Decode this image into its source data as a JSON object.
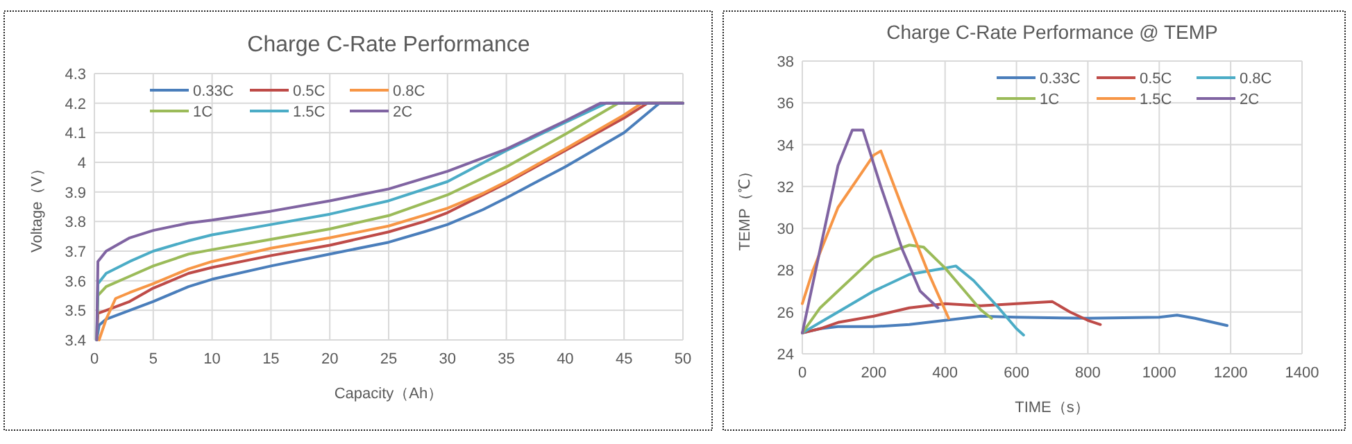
{
  "chart_data": [
    {
      "type": "line",
      "title": "Charge C-Rate Performance",
      "xlabel": "Capacity（Ah）",
      "ylabel": "Voltage（V）",
      "xlim": [
        0,
        50
      ],
      "xticks": [
        0,
        5,
        10,
        15,
        20,
        25,
        30,
        35,
        40,
        45,
        50
      ],
      "ylim": [
        3.4,
        4.3
      ],
      "yticks": [
        {
          "value": 3.4,
          "label": "3.4"
        },
        {
          "value": 3.5,
          "label": "3.5"
        },
        {
          "value": 3.6,
          "label": "3.6"
        },
        {
          "value": 3.7,
          "label": "3.7"
        },
        {
          "value": 3.8,
          "label": "3.8"
        },
        {
          "value": 3.9,
          "label": "3.9"
        },
        {
          "value": 4.0,
          "label": "4"
        },
        {
          "value": 4.1,
          "label": "4.1"
        },
        {
          "value": 4.2,
          "label": "4.2"
        },
        {
          "value": 4.3,
          "label": "4.3"
        }
      ],
      "grid": true,
      "legend": "top left",
      "series": [
        {
          "name": "0.33C",
          "color": "#4a7ebb",
          "x": [
            0.2,
            0.4,
            1,
            3,
            5,
            8,
            10,
            15,
            20,
            25,
            28,
            30,
            33,
            35,
            40,
            45,
            48,
            50
          ],
          "values": [
            3.4,
            3.45,
            3.47,
            3.5,
            3.53,
            3.58,
            3.605,
            3.65,
            3.69,
            3.73,
            3.765,
            3.79,
            3.84,
            3.88,
            3.985,
            4.1,
            4.2,
            4.2
          ]
        },
        {
          "name": "0.5C",
          "color": "#be4b48",
          "x": [
            0.2,
            0.3,
            1,
            3,
            5,
            8,
            10,
            15,
            20,
            25,
            28,
            30,
            33,
            35,
            40,
            45,
            47,
            50
          ],
          "values": [
            3.4,
            3.49,
            3.5,
            3.53,
            3.575,
            3.625,
            3.645,
            3.685,
            3.72,
            3.765,
            3.8,
            3.83,
            3.89,
            3.93,
            4.04,
            4.15,
            4.2,
            4.2
          ]
        },
        {
          "name": "0.8C",
          "color": "#f79646",
          "x": [
            0.4,
            1,
            1.8,
            3,
            5,
            8,
            10,
            15,
            20,
            25,
            30,
            33,
            35,
            40,
            45,
            46.5,
            50
          ],
          "values": [
            3.4,
            3.47,
            3.54,
            3.56,
            3.59,
            3.64,
            3.665,
            3.71,
            3.745,
            3.785,
            3.845,
            3.895,
            3.935,
            4.045,
            4.16,
            4.2,
            4.2
          ]
        },
        {
          "name": "1C",
          "color": "#9bbb59",
          "x": [
            0.2,
            0.3,
            1,
            3,
            5,
            8,
            10,
            15,
            20,
            25,
            30,
            35,
            40,
            44.5,
            50
          ],
          "values": [
            3.4,
            3.55,
            3.58,
            3.615,
            3.65,
            3.69,
            3.705,
            3.74,
            3.775,
            3.82,
            3.89,
            3.985,
            4.095,
            4.2,
            4.2
          ]
        },
        {
          "name": "1.5C",
          "color": "#4bacc6",
          "x": [
            0.2,
            0.3,
            1,
            3,
            5,
            8,
            10,
            15,
            20,
            25,
            30,
            35,
            40,
            43.5,
            50
          ],
          "values": [
            3.4,
            3.59,
            3.625,
            3.665,
            3.7,
            3.735,
            3.755,
            3.79,
            3.825,
            3.87,
            3.935,
            4.04,
            4.135,
            4.2,
            4.2
          ]
        },
        {
          "name": "2C",
          "color": "#8064a2",
          "x": [
            0.2,
            0.3,
            1,
            3,
            5,
            8,
            10,
            15,
            20,
            25,
            30,
            35,
            40,
            43,
            50
          ],
          "values": [
            3.4,
            3.665,
            3.7,
            3.745,
            3.77,
            3.795,
            3.805,
            3.835,
            3.87,
            3.91,
            3.97,
            4.045,
            4.14,
            4.2,
            4.2
          ]
        }
      ]
    },
    {
      "type": "line",
      "title": "Charge C-Rate Performance @ TEMP",
      "xlabel": "TIME（s）",
      "ylabel": "TEMP（℃）",
      "xlim": [
        0,
        1400
      ],
      "xticks": [
        0,
        200,
        400,
        600,
        800,
        1000,
        1200,
        1400
      ],
      "ylim": [
        24,
        38
      ],
      "yticks": [
        24,
        26,
        28,
        30,
        32,
        34,
        36,
        38
      ],
      "grid": true,
      "legend": "top right",
      "series": [
        {
          "name": "0.33C",
          "color": "#4a7ebb",
          "x": [
            0,
            50,
            100,
            200,
            300,
            400,
            500,
            600,
            800,
            1000,
            1050,
            1100,
            1190
          ],
          "values": [
            25,
            25.2,
            25.3,
            25.3,
            25.4,
            25.6,
            25.8,
            25.75,
            25.7,
            25.75,
            25.85,
            25.7,
            25.35
          ]
        },
        {
          "name": "0.5C",
          "color": "#be4b48",
          "x": [
            0,
            50,
            100,
            200,
            300,
            400,
            500,
            600,
            700,
            750,
            800,
            835
          ],
          "values": [
            25,
            25.2,
            25.5,
            25.8,
            26.2,
            26.4,
            26.3,
            26.4,
            26.5,
            26,
            25.6,
            25.4
          ]
        },
        {
          "name": "0.8C",
          "color": "#4bacc6",
          "x": [
            0,
            50,
            100,
            200,
            300,
            400,
            430,
            480,
            550,
            600,
            620
          ],
          "values": [
            25,
            25.5,
            26,
            27,
            27.8,
            28.1,
            28.2,
            27.5,
            26.2,
            25.2,
            24.9
          ]
        },
        {
          "name": "1C",
          "color": "#9bbb59",
          "x": [
            0,
            50,
            100,
            200,
            300,
            340,
            400,
            450,
            500,
            530
          ],
          "values": [
            25,
            26.2,
            27,
            28.6,
            29.2,
            29.1,
            28.1,
            27.1,
            26.1,
            25.7
          ]
        },
        {
          "name": "1.5C",
          "color": "#f79646",
          "x": [
            0,
            30,
            100,
            200,
            220,
            280,
            350,
            410
          ],
          "values": [
            26.4,
            28,
            31,
            33.5,
            33.7,
            31,
            28,
            25.7
          ]
        },
        {
          "name": "2C",
          "color": "#8064a2",
          "x": [
            0,
            50,
            100,
            140,
            170,
            220,
            280,
            330,
            380
          ],
          "values": [
            25,
            29,
            33,
            34.7,
            34.7,
            32,
            29,
            27,
            26.2
          ]
        }
      ]
    }
  ]
}
